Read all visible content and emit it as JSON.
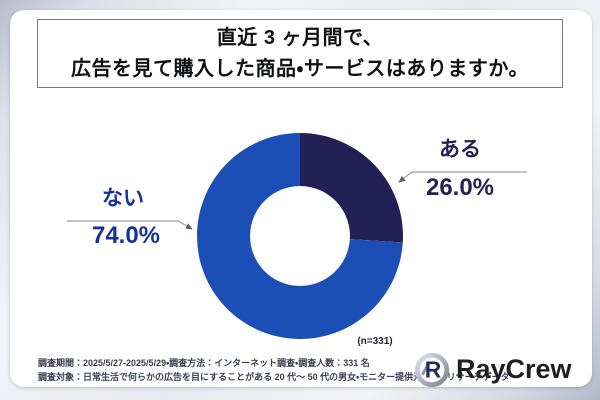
{
  "title_box": {
    "line1": "直近 3 ヶ月間で、",
    "line2": "広告を見て購入した商品・サービスはありますか。"
  },
  "chart_data": {
    "type": "pie",
    "subtype": "donut",
    "question": "直近 3 ヶ月間で、広告を見て購入した商品・サービスはありますか。",
    "sample_label": "(n=331)",
    "sample_size": 331,
    "start_angle_deg": -90,
    "direction": "clockwise",
    "inner_radius_ratio": 0.485,
    "legend_position": "callout-labels",
    "segments": [
      {
        "label": "ある",
        "value": 26.0,
        "display": "26.0%",
        "color": "#232055",
        "label_color": "#232055"
      },
      {
        "label": "ない",
        "value": 74.0,
        "display": "74.0%",
        "color": "#1c4fb6",
        "label_color": "#16309f"
      }
    ]
  },
  "footer": {
    "line1": "調査期間：2025/5/27-2025/5/29・調査方法：インターネット調査・調査人数：331 名",
    "line2": "調査対象：日常生活で何らかの広告を目にすることがある 20 代～ 50 代の男女・モニター提供元：RC リサーチデータ"
  },
  "logo": {
    "brand": "RayCrew",
    "brand_color": "#1f1f1f",
    "mark_color": "#242a5e",
    "mark_letter": "R"
  }
}
